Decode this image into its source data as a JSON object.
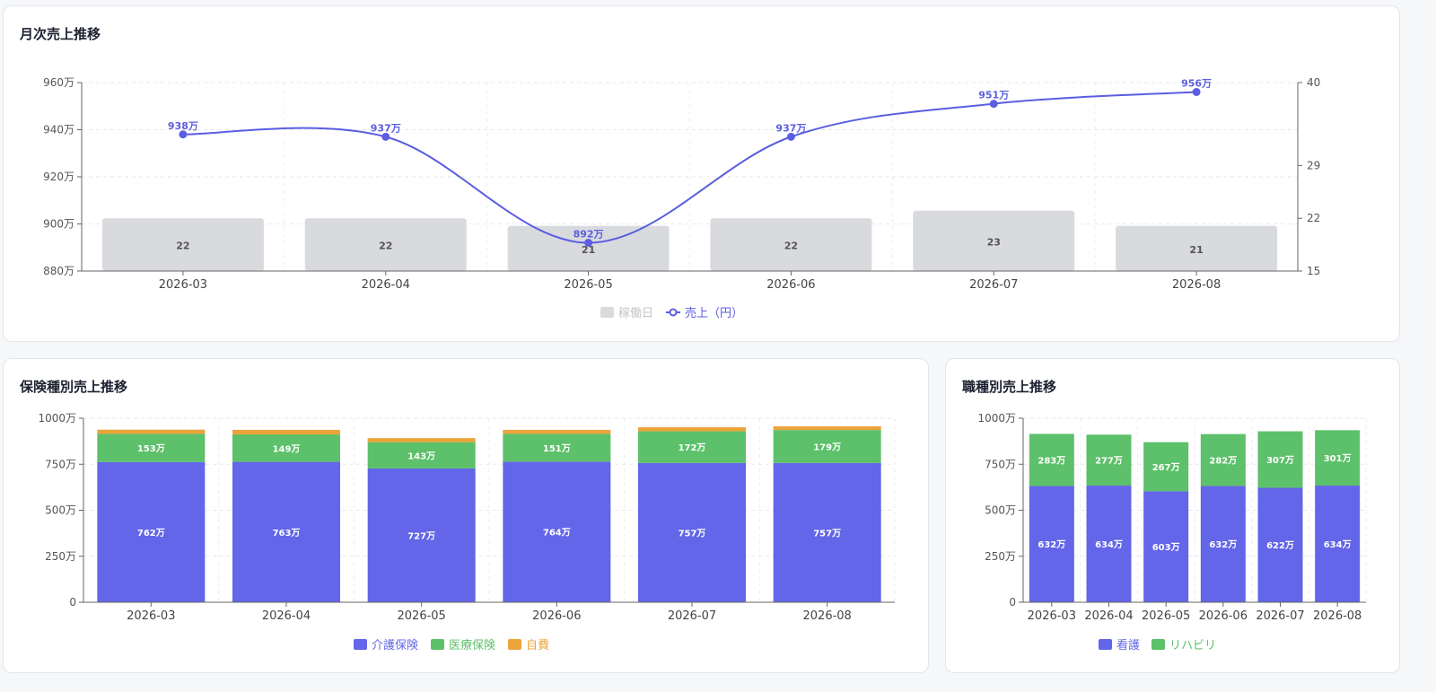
{
  "charts": {
    "monthly": {
      "title": "月次売上推移",
      "chart_data": {
        "type": "bar+line",
        "categories": [
          "2026-03",
          "2026-04",
          "2026-05",
          "2026-06",
          "2026-07",
          "2026-08"
        ],
        "series": [
          {
            "name": "稼働日",
            "type": "bar",
            "axis": "right",
            "values": [
              22,
              22,
              21,
              22,
              23,
              21
            ],
            "labels": [
              "22",
              "22",
              "21",
              "22",
              "23",
              "21"
            ],
            "color": "#d9dadd"
          },
          {
            "name": "売上（円）",
            "type": "line",
            "axis": "left",
            "values": [
              938,
              937,
              892,
              937,
              951,
              956
            ],
            "labels": [
              "938万",
              "937万",
              "892万",
              "937万",
              "951万",
              "956万"
            ],
            "color": "#5b5ee0"
          }
        ],
        "yleft": {
          "min": 880,
          "max": 960,
          "ticks": [
            "880万",
            "900万",
            "920万",
            "940万",
            "960万"
          ],
          "unit": "万円"
        },
        "yright": {
          "min": 15,
          "max": 40,
          "ticks": [
            "15",
            "22",
            "29",
            "40"
          ],
          "tick_values": [
            15,
            22,
            29,
            40
          ]
        },
        "grid": true,
        "legend": "bottom-center"
      }
    },
    "insurance": {
      "title": "保険種別売上推移",
      "chart_data": {
        "type": "stacked-bar",
        "categories": [
          "2026-03",
          "2026-04",
          "2026-05",
          "2026-06",
          "2026-07",
          "2026-08"
        ],
        "series": [
          {
            "name": "介護保険",
            "values": [
              762,
              763,
              727,
              764,
              757,
              757
            ],
            "labels": [
              "762万",
              "763万",
              "727万",
              "764万",
              "757万",
              "757万"
            ],
            "color": "#6366e8"
          },
          {
            "name": "医療保険",
            "values": [
              153,
              149,
              143,
              151,
              172,
              179
            ],
            "labels": [
              "153万",
              "149万",
              "143万",
              "151万",
              "172万",
              "179万"
            ],
            "color": "#5dc06a"
          },
          {
            "name": "自費",
            "values": [
              23,
              25,
              22,
              22,
              22,
              20
            ],
            "labels": [],
            "color": "#eba43a"
          }
        ],
        "yaxis": {
          "min": 0,
          "max": 1000,
          "ticks": [
            "0",
            "250万",
            "500万",
            "750万",
            "1000万"
          ]
        },
        "grid": true,
        "legend": "bottom-center"
      }
    },
    "occupation": {
      "title": "職種別売上推移",
      "chart_data": {
        "type": "stacked-bar",
        "categories": [
          "2026-03",
          "2026-04",
          "2026-05",
          "2026-06",
          "2026-07",
          "2026-08"
        ],
        "series": [
          {
            "name": "看護",
            "values": [
              632,
              634,
              603,
              632,
              622,
              634
            ],
            "labels": [
              "632万",
              "634万",
              "603万",
              "632万",
              "622万",
              "634万"
            ],
            "color": "#6366e8"
          },
          {
            "name": "リハビリ",
            "values": [
              283,
              277,
              267,
              282,
              307,
              301
            ],
            "labels": [
              "283万",
              "277万",
              "267万",
              "282万",
              "307万",
              "301万"
            ],
            "color": "#5dc06a"
          }
        ],
        "yaxis": {
          "min": 0,
          "max": 1000,
          "ticks": [
            "0",
            "250万",
            "500万",
            "750万",
            "1000万"
          ]
        },
        "grid": true,
        "legend": "bottom-center"
      }
    }
  }
}
